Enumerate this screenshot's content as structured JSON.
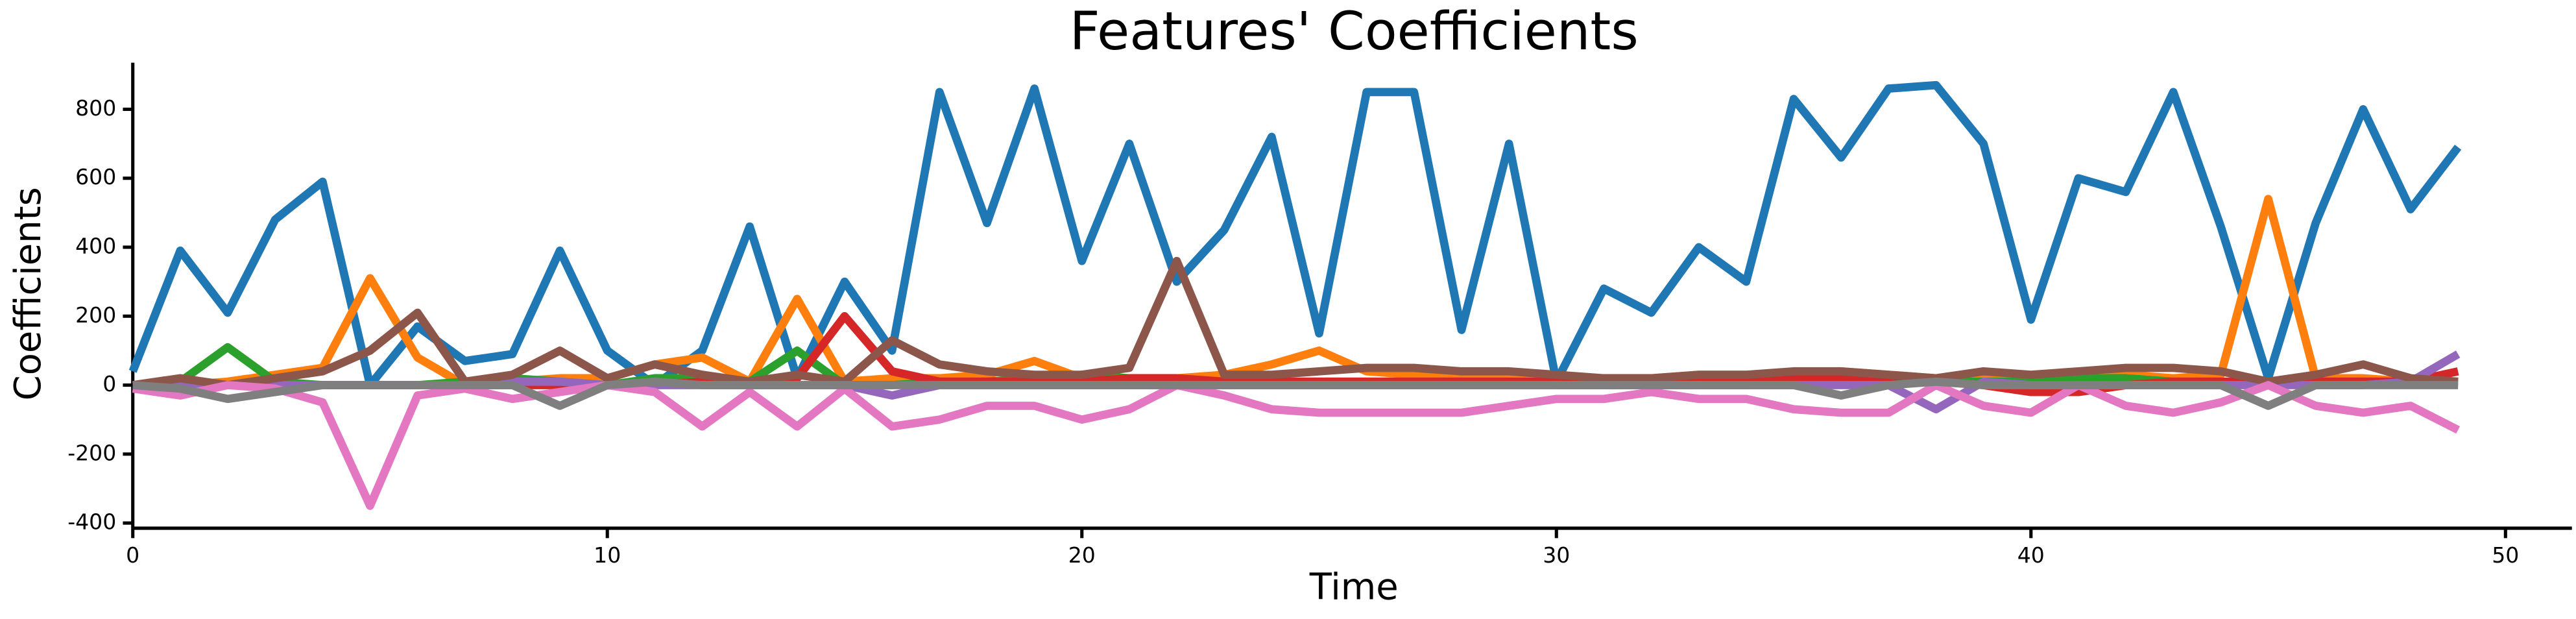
{
  "chart_data": {
    "type": "line",
    "title": "Features' Coefficients",
    "x_label": "Time",
    "y_label": "Coefficients",
    "x": [
      0,
      1,
      2,
      3,
      4,
      5,
      6,
      7,
      8,
      9,
      10,
      11,
      12,
      13,
      14,
      15,
      16,
      17,
      18,
      19,
      20,
      21,
      22,
      23,
      24,
      25,
      26,
      27,
      28,
      29,
      30,
      31,
      32,
      33,
      34,
      35,
      36,
      37,
      38,
      39,
      40,
      41,
      42,
      43,
      44,
      45,
      46,
      47,
      48,
      49
    ],
    "xlim": [
      0,
      51.4
    ],
    "xticks": [
      0,
      10,
      20,
      30,
      40,
      50
    ],
    "ylim": [
      -415,
      935
    ],
    "yticks": [
      -400,
      -200,
      0,
      200,
      400,
      600,
      800
    ],
    "series": [
      {
        "color": "#1f77b4",
        "values": [
          40,
          390,
          210,
          480,
          590,
          0,
          170,
          70,
          90,
          390,
          100,
          0,
          100,
          460,
          20,
          300,
          100,
          850,
          470,
          860,
          360,
          700,
          300,
          450,
          720,
          150,
          850,
          850,
          160,
          700,
          10,
          280,
          210,
          400,
          300,
          830,
          660,
          860,
          870,
          700,
          190,
          600,
          560,
          850,
          460,
          20,
          470,
          800,
          510,
          690
        ]
      },
      {
        "color": "#ff7f0e",
        "values": [
          0,
          0,
          10,
          30,
          50,
          310,
          80,
          0,
          10,
          20,
          20,
          60,
          80,
          10,
          250,
          10,
          20,
          20,
          30,
          70,
          20,
          20,
          20,
          30,
          60,
          100,
          40,
          30,
          30,
          20,
          20,
          20,
          20,
          30,
          30,
          30,
          40,
          30,
          20,
          20,
          10,
          20,
          30,
          20,
          30,
          540,
          20,
          20,
          10,
          10
        ]
      },
      {
        "color": "#2ca02c",
        "values": [
          0,
          10,
          110,
          10,
          0,
          0,
          0,
          10,
          20,
          10,
          0,
          20,
          20,
          10,
          100,
          0,
          0,
          10,
          10,
          20,
          30,
          20,
          10,
          10,
          10,
          10,
          10,
          10,
          10,
          10,
          0,
          0,
          0,
          0,
          0,
          10,
          10,
          10,
          10,
          10,
          10,
          20,
          20,
          10,
          10,
          0,
          10,
          10,
          10,
          10
        ]
      },
      {
        "color": "#d62728",
        "values": [
          0,
          0,
          0,
          0,
          0,
          0,
          0,
          0,
          0,
          0,
          0,
          0,
          10,
          10,
          20,
          200,
          40,
          10,
          10,
          10,
          10,
          20,
          20,
          10,
          10,
          10,
          10,
          10,
          10,
          10,
          10,
          10,
          10,
          10,
          10,
          20,
          20,
          10,
          10,
          0,
          -20,
          -20,
          0,
          10,
          10,
          10,
          10,
          10,
          10,
          40
        ]
      },
      {
        "color": "#9467bd",
        "values": [
          0,
          0,
          0,
          0,
          0,
          0,
          0,
          0,
          10,
          10,
          0,
          0,
          0,
          0,
          0,
          0,
          -30,
          0,
          0,
          0,
          0,
          0,
          0,
          0,
          0,
          0,
          0,
          0,
          0,
          0,
          0,
          0,
          0,
          0,
          0,
          0,
          0,
          0,
          -70,
          10,
          0,
          0,
          0,
          0,
          0,
          0,
          0,
          0,
          10,
          90
        ]
      },
      {
        "color": "#8c564b",
        "values": [
          0,
          20,
          0,
          20,
          40,
          100,
          210,
          10,
          30,
          100,
          20,
          60,
          30,
          10,
          30,
          10,
          130,
          60,
          40,
          30,
          30,
          50,
          360,
          30,
          30,
          40,
          50,
          50,
          40,
          40,
          30,
          20,
          20,
          30,
          30,
          40,
          40,
          30,
          20,
          40,
          30,
          40,
          50,
          50,
          40,
          10,
          30,
          60,
          20,
          10
        ]
      },
      {
        "color": "#e377c2",
        "values": [
          -10,
          -30,
          0,
          -10,
          -50,
          -350,
          -30,
          -10,
          -40,
          -20,
          0,
          -20,
          -120,
          -20,
          -120,
          -10,
          -120,
          -100,
          -60,
          -60,
          -100,
          -70,
          0,
          -30,
          -70,
          -80,
          -80,
          -80,
          -80,
          -60,
          -40,
          -40,
          -20,
          -40,
          -40,
          -70,
          -80,
          -80,
          0,
          -60,
          -80,
          0,
          -60,
          -80,
          -50,
          0,
          -60,
          -80,
          -60,
          -130
        ]
      },
      {
        "color": "#7f7f7f",
        "values": [
          0,
          -10,
          -40,
          -20,
          0,
          0,
          0,
          0,
          0,
          -60,
          0,
          10,
          0,
          0,
          0,
          0,
          0,
          0,
          0,
          0,
          0,
          0,
          0,
          0,
          0,
          0,
          0,
          0,
          0,
          0,
          0,
          0,
          0,
          0,
          0,
          0,
          -30,
          0,
          10,
          0,
          0,
          0,
          0,
          0,
          0,
          -60,
          0,
          0,
          0,
          0
        ]
      }
    ]
  }
}
